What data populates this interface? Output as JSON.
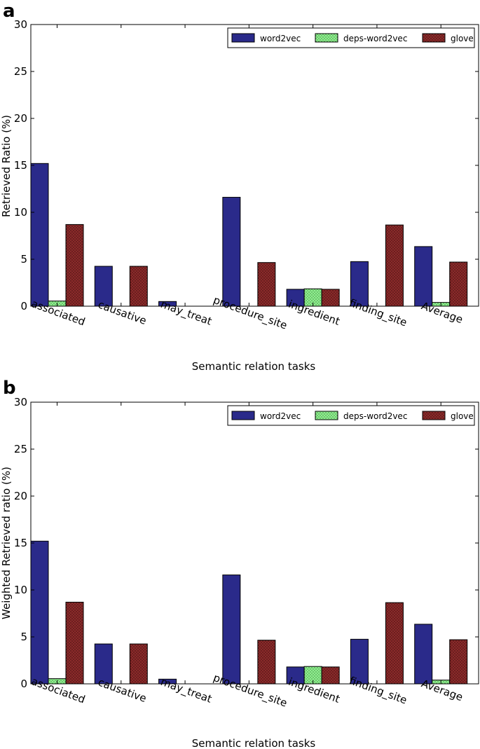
{
  "chart_data": [
    {
      "panel_label": "a",
      "type": "bar",
      "title": "",
      "xlabel": "Semantic relation tasks",
      "ylabel": "Retrieved Ratio (%)",
      "ylim": [
        0,
        30
      ],
      "yticks": [
        0,
        5,
        10,
        15,
        20,
        25,
        30
      ],
      "categories": [
        "associated",
        "causative",
        "may_treat",
        "procedure_site",
        "ingredient",
        "finding_site",
        "Average"
      ],
      "series": [
        {
          "name": "word2vec",
          "color": "#2a2a8a",
          "values": [
            15.2,
            4.25,
            0.5,
            11.6,
            1.8,
            4.75,
            6.35
          ]
        },
        {
          "name": "deps-word2vec",
          "color": "#90ee90",
          "values": [
            0.55,
            0,
            0,
            0,
            1.85,
            0,
            0.4
          ]
        },
        {
          "name": "glove",
          "color": "#8b2a2a",
          "values": [
            8.7,
            4.25,
            0,
            4.65,
            1.8,
            8.65,
            4.7
          ]
        }
      ],
      "legend_position": "top-right",
      "grid": false
    },
    {
      "panel_label": "b",
      "type": "bar",
      "title": "",
      "xlabel": "Semantic relation tasks",
      "ylabel": "Weighted Retrieved ratio (%)",
      "ylim": [
        0,
        30
      ],
      "yticks": [
        0,
        5,
        10,
        15,
        20,
        25,
        30
      ],
      "categories": [
        "associated",
        "causative",
        "may_treat",
        "procedure_site",
        "ingredient",
        "finding_site",
        "Average"
      ],
      "series": [
        {
          "name": "word2vec",
          "color": "#2a2a8a",
          "values": [
            15.2,
            4.25,
            0.5,
            11.6,
            1.8,
            4.75,
            6.35
          ]
        },
        {
          "name": "deps-word2vec",
          "color": "#90ee90",
          "values": [
            0.55,
            0,
            0,
            0,
            1.85,
            0,
            0.4
          ]
        },
        {
          "name": "glove",
          "color": "#8b2a2a",
          "values": [
            8.7,
            4.25,
            0,
            4.65,
            1.8,
            8.65,
            4.7
          ]
        }
      ],
      "legend_position": "top-right",
      "grid": false
    }
  ]
}
